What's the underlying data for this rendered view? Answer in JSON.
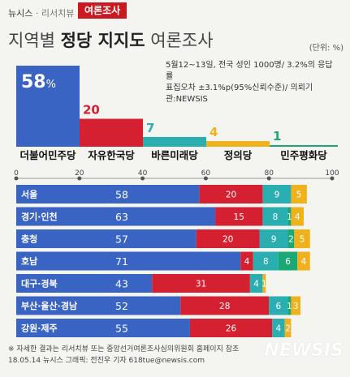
{
  "header": {
    "brand": "뉴시스",
    "sub": "· 리서치뷰",
    "tag": "여론조사"
  },
  "title": {
    "prefix": "지역별 ",
    "bold": "정당 지지도",
    "suffix": " 여론조사"
  },
  "unit": "(단위: %)",
  "note": {
    "line1": "5월12~13일, 전국 성인 1000명/ 3.2%의 응답률",
    "line2": "표집오차 ±3.1%p(95%신뢰수준)/ 의뢰기관:NEWSIS"
  },
  "colors": {
    "더불어민주당": "#3a64c4",
    "자유한국당": "#d42030",
    "바른미래당": "#2aaeb0",
    "정의당": "#f0b21c",
    "민주평화당": "#1aa874"
  },
  "chart_data": [
    {
      "type": "bar",
      "categories": [
        "더불어민주당",
        "자유한국당",
        "바른미래당",
        "정의당",
        "민주평화당"
      ],
      "values": [
        58,
        20,
        7,
        4,
        1
      ],
      "top_label": "58"
    },
    {
      "type": "bar",
      "stacked": true,
      "orientation": "horizontal",
      "xlim": [
        0,
        100
      ],
      "ticks": [
        0,
        20,
        40,
        60,
        80,
        100
      ],
      "categories": [
        "서울",
        "경기·인천",
        "충청",
        "호남",
        "대구·경북",
        "부산·울산·경남",
        "강원·제주"
      ],
      "series": [
        {
          "name": "더불어민주당",
          "values": [
            58,
            63,
            57,
            71,
            43,
            52,
            55
          ]
        },
        {
          "name": "자유한국당",
          "values": [
            20,
            15,
            20,
            4,
            31,
            28,
            26
          ]
        },
        {
          "name": "바른미래당",
          "values": [
            9,
            8,
            9,
            8,
            4,
            6,
            4
          ]
        },
        {
          "name": "민주평화당",
          "values": [
            0,
            1,
            2,
            6,
            0,
            1,
            0
          ]
        },
        {
          "name": "정의당",
          "values": [
            5,
            4,
            5,
            4,
            1,
            3,
            2
          ]
        }
      ]
    }
  ],
  "footer": {
    "line1": "※ 자세한 결과는 리서치뷰 또는 중앙선거여론조사심의위원회 홈페이지 참조",
    "line2": "18.05.14 뉴시스 그래픽: 전진우 기자 618tue@newsis.com"
  },
  "watermark": "NEWSIS"
}
